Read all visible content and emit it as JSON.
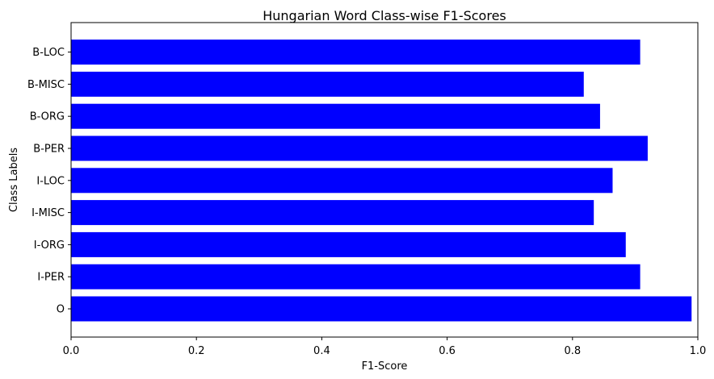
{
  "chart_data": {
    "type": "bar",
    "orientation": "horizontal",
    "title": "Hungarian Word Class-wise F1-Scores",
    "xlabel": "F1-Score",
    "ylabel": "Class Labels",
    "categories": [
      "O",
      "I-PER",
      "I-ORG",
      "I-MISC",
      "I-LOC",
      "B-PER",
      "B-ORG",
      "B-MISC",
      "B-LOC"
    ],
    "values": [
      0.99,
      0.908,
      0.885,
      0.834,
      0.864,
      0.92,
      0.844,
      0.818,
      0.908
    ],
    "xlim": [
      0,
      1.0
    ],
    "xticks": [
      "0.0",
      "0.2",
      "0.4",
      "0.6",
      "0.8",
      "1.0"
    ],
    "bar_color": "#0000ff",
    "grid": false,
    "legend": false
  }
}
